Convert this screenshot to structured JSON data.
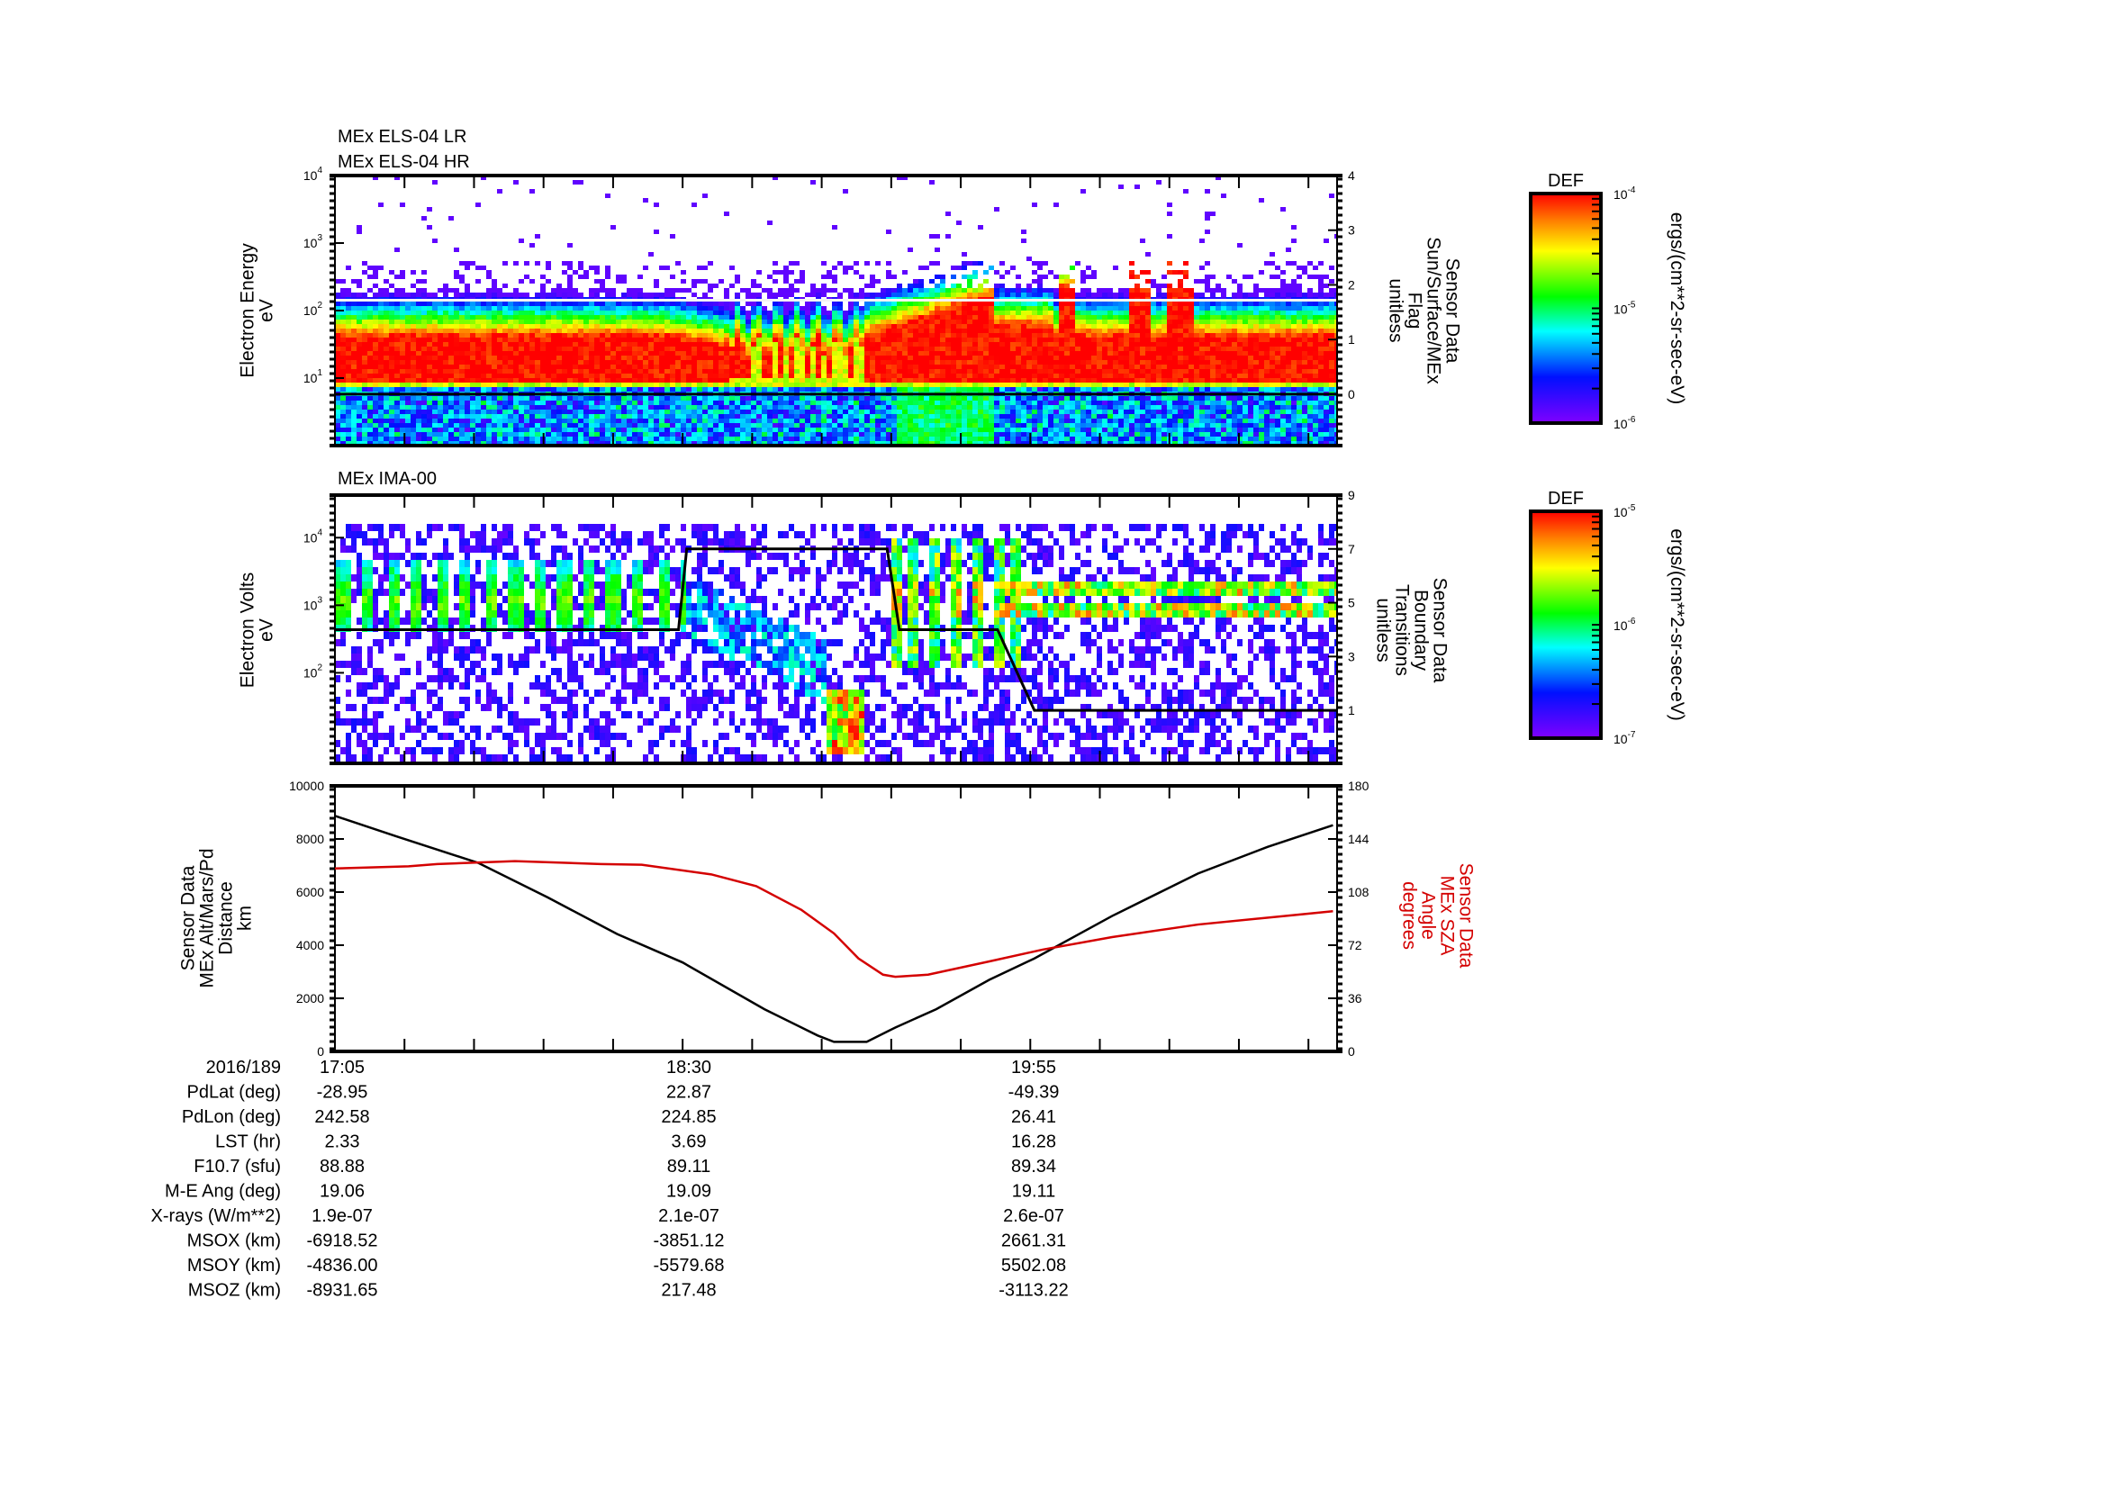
{
  "panels": [
    {
      "titles": [
        "MEx ELS-04 LR",
        "MEx ELS-04 HR"
      ],
      "left_label": [
        "Electron Energy",
        "eV"
      ],
      "right_label": [
        "Sensor Data",
        "Sun/Surface/MEx",
        "Flag",
        "unitless"
      ],
      "left_ticks_exp": [
        "1",
        "2",
        "3",
        "4"
      ],
      "right_ticks": [
        "0",
        "1",
        "2",
        "3",
        "4"
      ]
    },
    {
      "titles": [
        "MEx IMA-00"
      ],
      "left_label": [
        "Electron Volts",
        "eV"
      ],
      "right_label": [
        "Sensor Data",
        "Boundary",
        "Transitions",
        "unitless"
      ],
      "left_ticks_exp": [
        "2",
        "3",
        "4"
      ],
      "right_ticks": [
        "1",
        "3",
        "5",
        "7",
        "9"
      ]
    },
    {
      "titles": [],
      "left_label": [
        "Sensor Data",
        "MEx Alt/Mars/Pd",
        "Distance",
        "km"
      ],
      "right_label": [
        "Sensor Data",
        "MEx SZA",
        "Angle",
        "degrees"
      ],
      "left_ticks": [
        "0",
        "2000",
        "4000",
        "6000",
        "8000",
        "10000"
      ],
      "right_ticks": [
        "0",
        "36",
        "72",
        "108",
        "144",
        "180"
      ]
    }
  ],
  "colorbars": [
    {
      "title": "DEF",
      "units": "ergs/(cm**2-sr-sec-eV)",
      "tick_exp": [
        "-4",
        "-5",
        "-6"
      ]
    },
    {
      "title": "DEF",
      "units": "ergs/(cm**2-sr-sec-eV)",
      "tick_exp": [
        "-5",
        "-6",
        "-7"
      ]
    }
  ],
  "colors": {
    "sza": "#d40000",
    "altitude": "#000000",
    "flag_line": "#000000"
  },
  "chart_data": [
    {
      "type": "heatmap",
      "title": "MEx ELS-04 LR / MEx ELS-04 HR",
      "ylabel": "Electron Energy (eV)",
      "yscale": "log",
      "ylim": [
        1,
        10000
      ],
      "colorbar": {
        "label": "DEF ergs/(cm**2-sr-sec-eV)",
        "range": [
          1e-06,
          0.0001
        ]
      },
      "x_minutes_range": [
        0,
        245
      ],
      "overlay": {
        "name": "Sensor Data Sun/Surface/MEx Flag",
        "ylim": [
          -0.94,
          4
        ],
        "points": [
          [
            0,
            0
          ],
          [
            245,
            0
          ]
        ]
      }
    },
    {
      "type": "heatmap",
      "title": "MEx IMA-00",
      "ylabel": "Electron Volts (eV)",
      "yscale": "log",
      "ylim": [
        4.6,
        42000
      ],
      "colorbar": {
        "label": "DEF ergs/(cm**2-sr-sec-eV)",
        "range": [
          1e-07,
          1e-05
        ]
      },
      "x_minutes_range": [
        0,
        245
      ],
      "overlay": {
        "name": "Sensor Data Boundary Transitions",
        "ylim": [
          -0.97,
          9
        ],
        "points": [
          [
            0,
            4
          ],
          [
            84,
            4
          ],
          [
            86,
            7
          ],
          [
            135,
            7
          ],
          [
            138,
            4
          ],
          [
            162,
            4
          ],
          [
            171,
            1
          ],
          [
            245,
            1
          ]
        ]
      }
    },
    {
      "type": "line",
      "x_minutes_range": [
        0,
        245
      ],
      "x_start": "17:05",
      "major_tick_interval_min": 17,
      "time_labels_minutes": [
        0,
        85,
        170
      ],
      "ylim": [
        0,
        10000
      ],
      "y2lim": [
        0,
        180
      ],
      "series": [
        {
          "name": "MEx Alt/Mars/Pd Distance (km)",
          "axis": "left",
          "points": [
            [
              0,
              8870
            ],
            [
              15,
              8100
            ],
            [
              35,
              7100
            ],
            [
              52,
              5800
            ],
            [
              69,
              4420
            ],
            [
              85,
              3350
            ],
            [
              105,
              1590
            ],
            [
              118,
              600
            ],
            [
              122,
              360
            ],
            [
              130,
              360
            ],
            [
              137,
              900
            ],
            [
              147,
              1590
            ],
            [
              160,
              2700
            ],
            [
              171,
              3500
            ],
            [
              190,
              5100
            ],
            [
              211,
              6700
            ],
            [
              228,
              7700
            ],
            [
              244,
              8520
            ]
          ]
        },
        {
          "name": "MEx SZA Angle (degrees)",
          "axis": "right",
          "points": [
            [
              0,
              124
            ],
            [
              18,
              125.5
            ],
            [
              25,
              127
            ],
            [
              44,
              129
            ],
            [
              65,
              127
            ],
            [
              75,
              126.5
            ],
            [
              92,
              120
            ],
            [
              103,
              112
            ],
            [
              114,
              96
            ],
            [
              122,
              80
            ],
            [
              128,
              63
            ],
            [
              134,
              52
            ],
            [
              137,
              50.6
            ],
            [
              145,
              52
            ],
            [
              160,
              61
            ],
            [
              173,
              69
            ],
            [
              190,
              77.5
            ],
            [
              211,
              86
            ],
            [
              244,
              95
            ]
          ]
        }
      ]
    }
  ],
  "table": {
    "rows": [
      {
        "label": "2016/189",
        "values": [
          "17:05",
          "18:30",
          "19:55"
        ]
      },
      {
        "label": "PdLat (deg)",
        "values": [
          "-28.95",
          "22.87",
          "-49.39"
        ]
      },
      {
        "label": "PdLon (deg)",
        "values": [
          "242.58",
          "224.85",
          "26.41"
        ]
      },
      {
        "label": "LST (hr)",
        "values": [
          "2.33",
          "3.69",
          "16.28"
        ]
      },
      {
        "label": "F10.7 (sfu)",
        "values": [
          "88.88",
          "89.11",
          "89.34"
        ]
      },
      {
        "label": "M-E Ang (deg)",
        "values": [
          "19.06",
          "19.09",
          "19.11"
        ]
      },
      {
        "label": "X-rays (W/m**2)",
        "values": [
          "1.9e-07",
          "2.1e-07",
          "2.6e-07"
        ]
      },
      {
        "label": "MSOX (km)",
        "values": [
          "-6918.52",
          "-3851.12",
          "2661.31"
        ]
      },
      {
        "label": "MSOY (km)",
        "values": [
          "-4836.00",
          "-5579.68",
          "5502.08"
        ]
      },
      {
        "label": "MSOZ (km)",
        "values": [
          "-8931.65",
          "217.48",
          "-3113.22"
        ]
      }
    ]
  }
}
